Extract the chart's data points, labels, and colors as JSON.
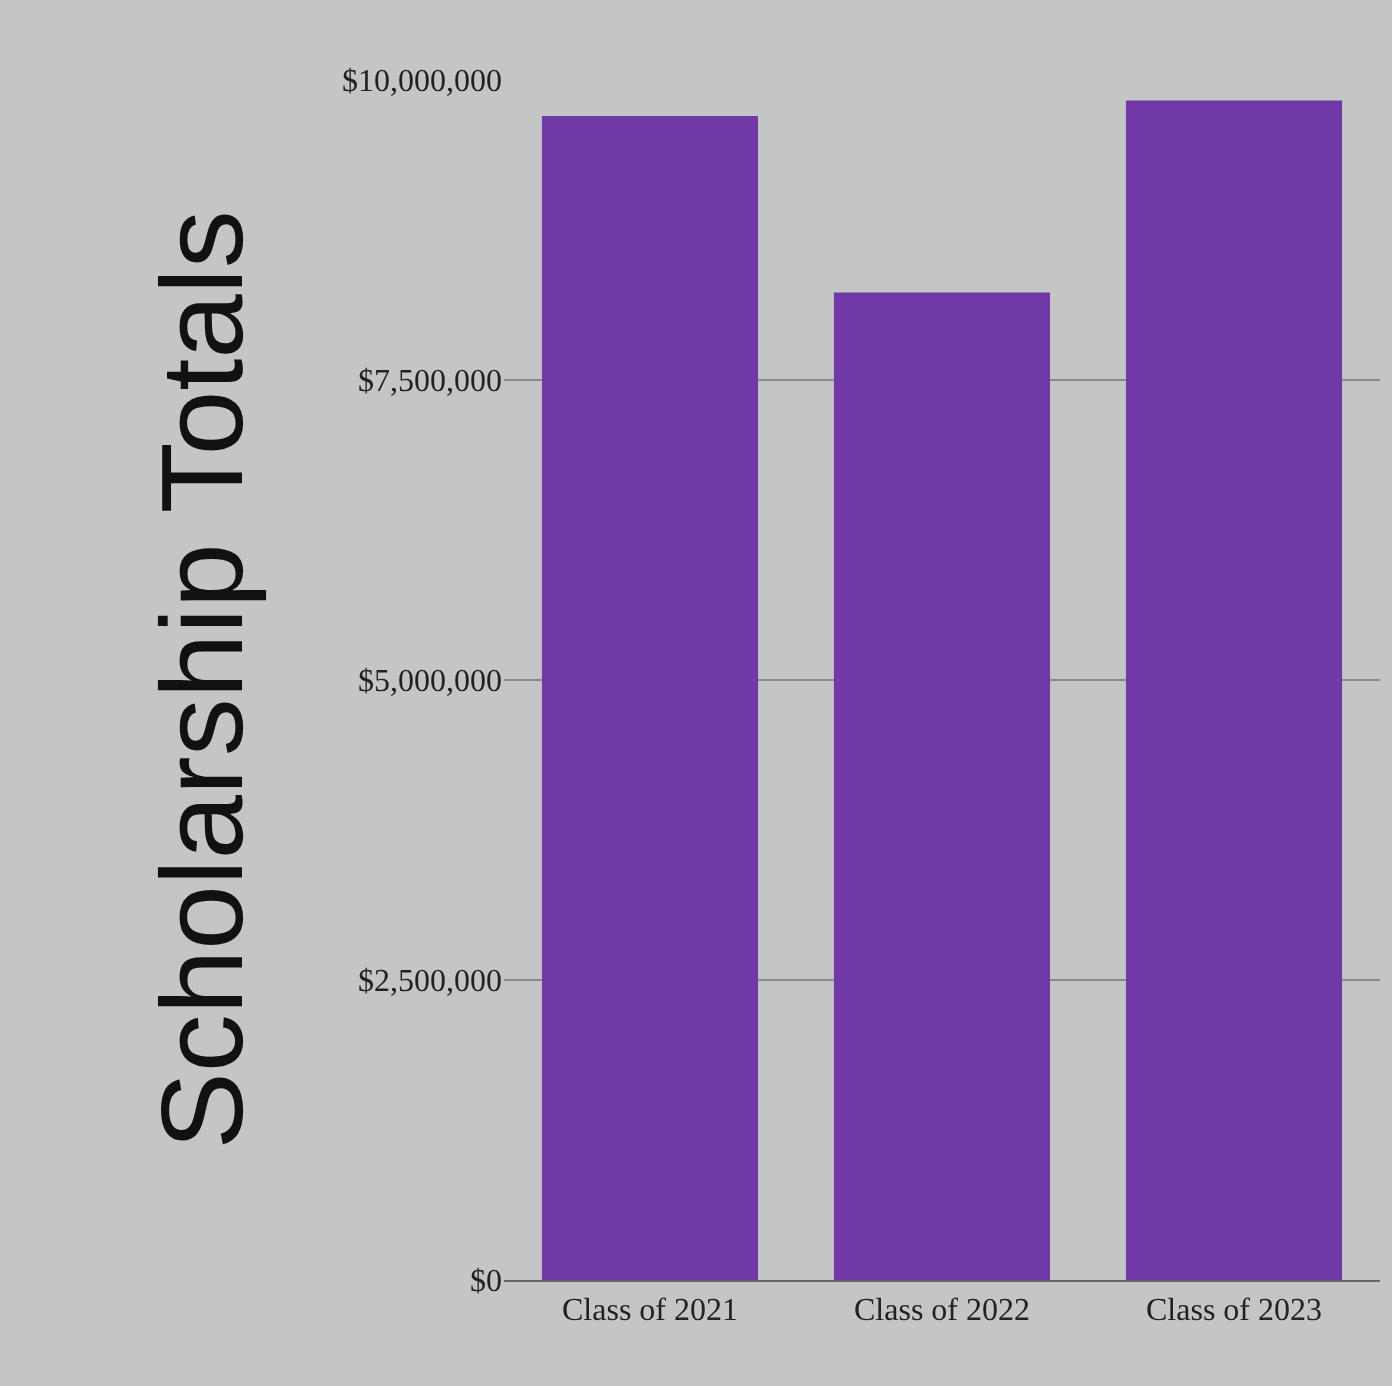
{
  "chart_data": {
    "type": "bar",
    "ylabel": "Scholarship Totals",
    "categories": [
      "Class of 2021",
      "Class of 2022",
      "Class of 2023"
    ],
    "values": [
      9700000,
      8230000,
      9830000
    ],
    "color": "#7139a8",
    "ylim": [
      0,
      10000000
    ],
    "yticks": [
      {
        "value": 0,
        "label": "$0"
      },
      {
        "value": 2500000,
        "label": "$2,500,000"
      },
      {
        "value": 5000000,
        "label": "$5,000,000"
      },
      {
        "value": 7500000,
        "label": "$7,500,000"
      },
      {
        "value": 10000000,
        "label": "$10,000,000"
      }
    ],
    "grid": "y",
    "legend": false
  }
}
